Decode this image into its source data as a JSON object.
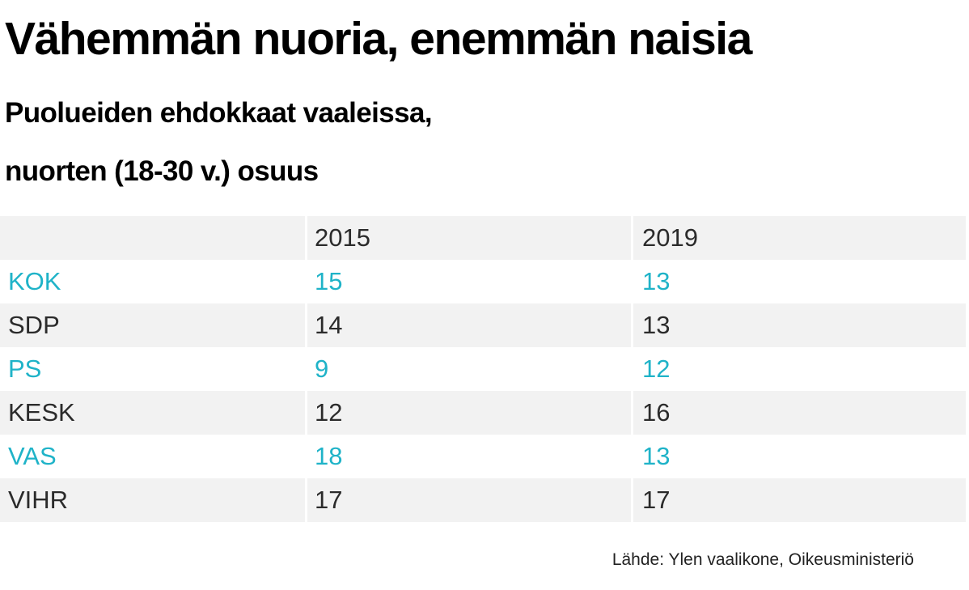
{
  "chart_data": {
    "type": "table",
    "title": "Vähemmän nuoria, enemmän naisia",
    "subtitle_lines": [
      "Puolueiden ehdokkaat vaaleissa,",
      "nuorten (18-30 v.) osuus"
    ],
    "columns": [
      "",
      "2015",
      "2019"
    ],
    "rows": [
      {
        "party": "KOK",
        "values": [
          "15",
          "13"
        ]
      },
      {
        "party": "SDP",
        "values": [
          "14",
          "13"
        ]
      },
      {
        "party": "PS",
        "values": [
          "9",
          "12"
        ]
      },
      {
        "party": "KESK",
        "values": [
          "12",
          "16"
        ]
      },
      {
        "party": "VAS",
        "values": [
          "18",
          "13"
        ]
      },
      {
        "party": "VIHR",
        "values": [
          "17",
          "17"
        ]
      }
    ],
    "source": "Lähde: Ylen vaalikone, Oikeusministeriö",
    "colors": {
      "accent_text": "#1fb3c8",
      "dark_text": "#2b2b2b",
      "shaded_row": "#f2f2f2"
    }
  }
}
